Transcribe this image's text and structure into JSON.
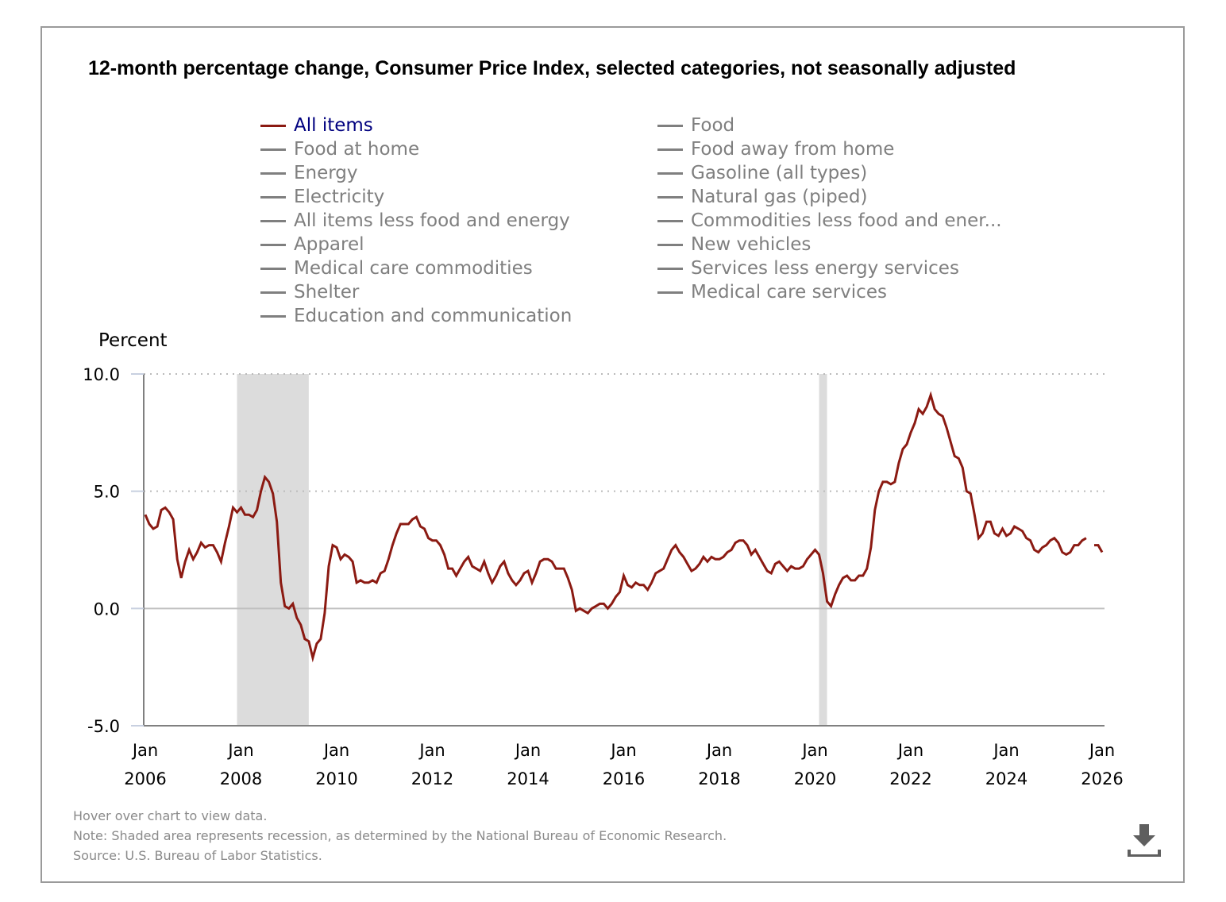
{
  "title": "12-month percentage change, Consumer Price Index, selected categories, not seasonally adjusted",
  "legend": {
    "left_column": [
      {
        "label": "All items",
        "active": true
      },
      {
        "label": "Food at home",
        "active": false
      },
      {
        "label": "Energy",
        "active": false
      },
      {
        "label": "Electricity",
        "active": false
      },
      {
        "label": "All items less food and energy",
        "active": false
      },
      {
        "label": "Apparel",
        "active": false
      },
      {
        "label": "Medical care commodities",
        "active": false
      },
      {
        "label": "Shelter",
        "active": false
      },
      {
        "label": "Education and communication",
        "active": false
      }
    ],
    "right_column": [
      {
        "label": "Food",
        "active": false
      },
      {
        "label": "Food away from home",
        "active": false
      },
      {
        "label": "Gasoline (all types)",
        "active": false
      },
      {
        "label": "Natural gas (piped)",
        "active": false
      },
      {
        "label": "Commodities less food and ener...",
        "active": false
      },
      {
        "label": "New vehicles",
        "active": false
      },
      {
        "label": "Services less energy services",
        "active": false
      },
      {
        "label": "Medical care services",
        "active": false
      }
    ]
  },
  "colors": {
    "active_series": "#8b1a12",
    "active_legend_text": "#00007f",
    "inactive": "#7f7f7f",
    "recession_shade": "#dcdcdc"
  },
  "footer": {
    "hover_hint": "Hover over chart to view data.",
    "note": "Note: Shaded area represents recession, as determined by the National Bureau of Economic Research.",
    "source": "Source: U.S. Bureau of Labor Statistics."
  },
  "download_icon": "download-icon",
  "chart_data": {
    "type": "line",
    "title": "12-month percentage change, Consumer Price Index, selected categories, not seasonally adjusted",
    "ylabel": "Percent",
    "xlabel": "",
    "ylim": [
      -5.0,
      10.0
    ],
    "yticks": [
      "10.0",
      "5.0",
      "0.0",
      "-5.0"
    ],
    "ytick_values": [
      10,
      5,
      0,
      -5
    ],
    "xlim": [
      "2006-01",
      "2026-01"
    ],
    "xticks": [
      {
        "month": "Jan",
        "year": "2006"
      },
      {
        "month": "Jan",
        "year": "2008"
      },
      {
        "month": "Jan",
        "year": "2010"
      },
      {
        "month": "Jan",
        "year": "2012"
      },
      {
        "month": "Jan",
        "year": "2014"
      },
      {
        "month": "Jan",
        "year": "2016"
      },
      {
        "month": "Jan",
        "year": "2018"
      },
      {
        "month": "Jan",
        "year": "2020"
      },
      {
        "month": "Jan",
        "year": "2022"
      },
      {
        "month": "Jan",
        "year": "2024"
      },
      {
        "month": "Jan",
        "year": "2026"
      }
    ],
    "recessions": [
      {
        "start": "2007-12",
        "end": "2009-06"
      },
      {
        "start": "2020-02",
        "end": "2020-04"
      }
    ],
    "grid": "horizontal dotted at 10.0 and 5.0, solid at 0.0",
    "legend_position": "top",
    "series": [
      {
        "name": "All items",
        "start": "2006-01",
        "frequency": "monthly",
        "values": [
          4.0,
          3.6,
          3.4,
          3.5,
          4.2,
          4.3,
          4.1,
          3.8,
          2.1,
          1.3,
          2.0,
          2.5,
          2.1,
          2.4,
          2.8,
          2.6,
          2.7,
          2.7,
          2.4,
          2.0,
          2.8,
          3.5,
          4.3,
          4.1,
          4.3,
          4.0,
          4.0,
          3.9,
          4.2,
          5.0,
          5.6,
          5.4,
          4.9,
          3.7,
          1.1,
          0.1,
          0.0,
          0.2,
          -0.4,
          -0.7,
          -1.3,
          -1.4,
          -2.1,
          -1.5,
          -1.3,
          -0.2,
          1.8,
          2.7,
          2.6,
          2.1,
          2.3,
          2.2,
          2.0,
          1.1,
          1.2,
          1.1,
          1.1,
          1.2,
          1.1,
          1.5,
          1.6,
          2.1,
          2.7,
          3.2,
          3.6,
          3.6,
          3.6,
          3.8,
          3.9,
          3.5,
          3.4,
          3.0,
          2.9,
          2.9,
          2.7,
          2.3,
          1.7,
          1.7,
          1.4,
          1.7,
          2.0,
          2.2,
          1.8,
          1.7,
          1.6,
          2.0,
          1.5,
          1.1,
          1.4,
          1.8,
          2.0,
          1.5,
          1.2,
          1.0,
          1.2,
          1.5,
          1.6,
          1.1,
          1.5,
          2.0,
          2.1,
          2.1,
          2.0,
          1.7,
          1.7,
          1.7,
          1.3,
          0.8,
          -0.1,
          0.0,
          -0.1,
          -0.2,
          0.0,
          0.1,
          0.2,
          0.2,
          0.0,
          0.2,
          0.5,
          0.7,
          1.4,
          1.0,
          0.9,
          1.1,
          1.0,
          1.0,
          0.8,
          1.1,
          1.5,
          1.6,
          1.7,
          2.1,
          2.5,
          2.7,
          2.4,
          2.2,
          1.9,
          1.6,
          1.7,
          1.9,
          2.2,
          2.0,
          2.2,
          2.1,
          2.1,
          2.2,
          2.4,
          2.5,
          2.8,
          2.9,
          2.9,
          2.7,
          2.3,
          2.5,
          2.2,
          1.9,
          1.6,
          1.5,
          1.9,
          2.0,
          1.8,
          1.6,
          1.8,
          1.7,
          1.7,
          1.8,
          2.1,
          2.3,
          2.5,
          2.3,
          1.5,
          0.3,
          0.1,
          0.6,
          1.0,
          1.3,
          1.4,
          1.2,
          1.2,
          1.4,
          1.4,
          1.7,
          2.6,
          4.2,
          5.0,
          5.4,
          5.4,
          5.3,
          5.4,
          6.2,
          6.8,
          7.0,
          7.5,
          7.9,
          8.5,
          8.3,
          8.6,
          9.1,
          8.5,
          8.3,
          8.2,
          7.7,
          7.1,
          6.5,
          6.4,
          6.0,
          5.0,
          4.9,
          4.0,
          3.0,
          3.2,
          3.7,
          3.7,
          3.2,
          3.1,
          3.4,
          3.1,
          3.2,
          3.5,
          3.4,
          3.3,
          3.0,
          2.9,
          2.5,
          2.4,
          2.6,
          2.7,
          2.9,
          3.0,
          2.8,
          2.4,
          2.3,
          2.4,
          2.7,
          2.7,
          2.9,
          3.0,
          null,
          2.7,
          2.7,
          2.4
        ]
      }
    ]
  }
}
